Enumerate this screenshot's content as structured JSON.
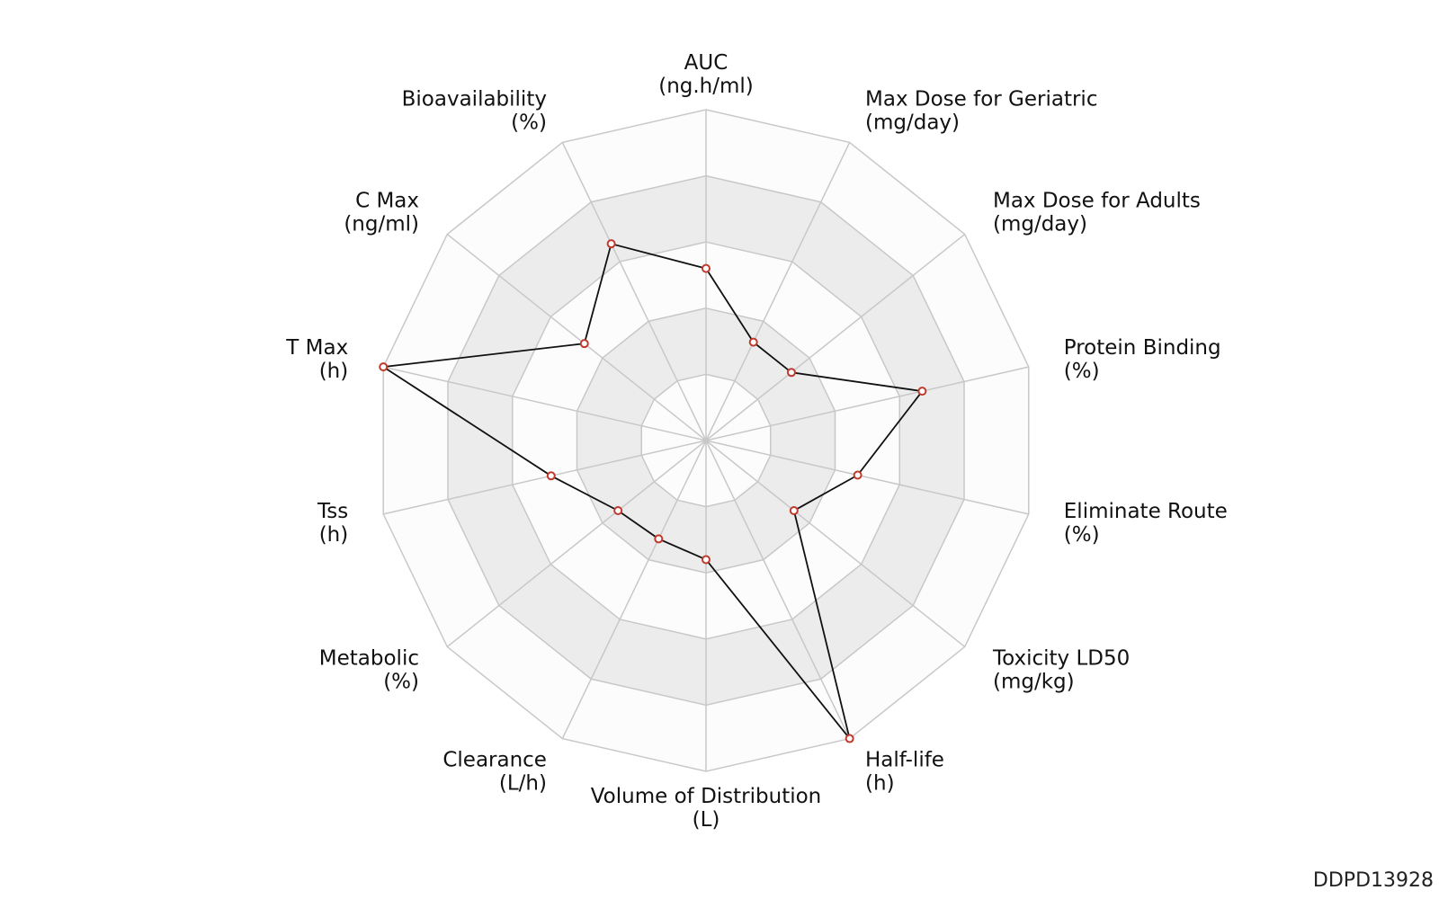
{
  "chart_data": {
    "type": "radar",
    "title": "",
    "rings": 5,
    "grid": true,
    "axes": [
      {
        "name": "AUC",
        "unit": "(ng.h/ml)",
        "value": 0.52
      },
      {
        "name": "Max Dose for Geriatric",
        "unit": "(mg/day)",
        "value": 0.33
      },
      {
        "name": "Max Dose for Adults",
        "unit": "(mg/day)",
        "value": 0.33
      },
      {
        "name": "Protein Binding",
        "unit": "(%)",
        "value": 0.67
      },
      {
        "name": "Eliminate Route",
        "unit": "(%)",
        "value": 0.47
      },
      {
        "name": "Toxicity LD50",
        "unit": "(mg/kg)",
        "value": 0.34
      },
      {
        "name": "Half-life",
        "unit": "(h)",
        "value": 1.0
      },
      {
        "name": "Volume of Distribution",
        "unit": "(L)",
        "value": 0.36
      },
      {
        "name": "Clearance",
        "unit": "(L/h)",
        "value": 0.33
      },
      {
        "name": "Metabolic",
        "unit": "(%)",
        "value": 0.34
      },
      {
        "name": "Tss",
        "unit": "(h)",
        "value": 0.48
      },
      {
        "name": "T Max",
        "unit": "(h)",
        "value": 1.0
      },
      {
        "name": "C Max",
        "unit": "(ng/ml)",
        "value": 0.47
      },
      {
        "name": "Bioavailability",
        "unit": "(%)",
        "value": 0.66
      }
    ],
    "colors": {
      "line": "#111111",
      "marker_edge": "#c0392b",
      "marker_fill": "#ffffff",
      "band_shaded": "#ececec",
      "band_plain": "#fcfcfc",
      "grid": "#c8c8c8"
    }
  },
  "watermark": "DDPD13928"
}
